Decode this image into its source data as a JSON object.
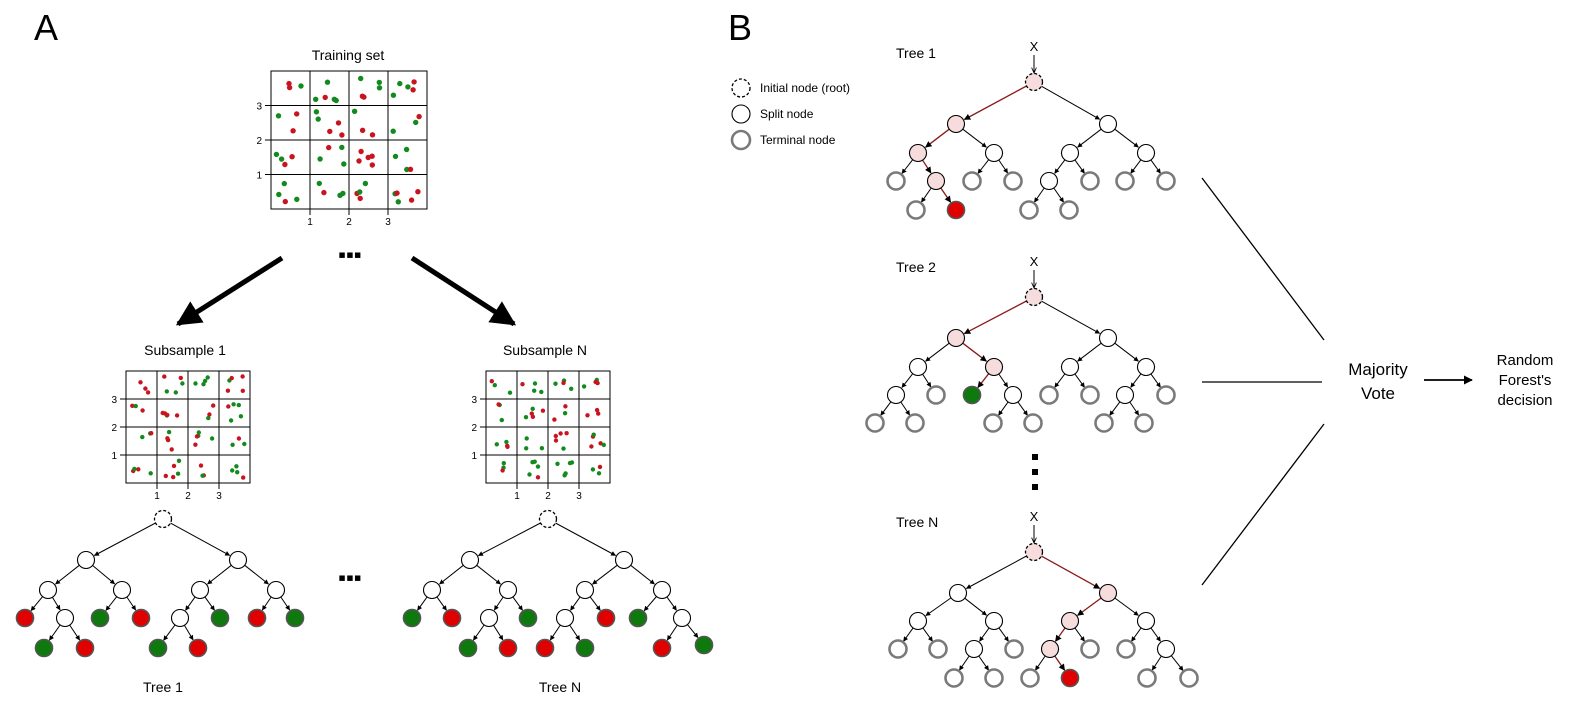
{
  "panels": {
    "a": "A",
    "b": "B"
  },
  "colors": {
    "red": "#e00000",
    "green": "#0e7a0e",
    "dotRed": "#c8141e",
    "dotGreen": "#138a1e",
    "pathNode": "#f6dcdc",
    "pathEdge": "#8b1a1a",
    "terminalStroke": "#7a7a7a"
  },
  "panel_a": {
    "training_title": "Training set",
    "subsample_1_title": "Subsample 1",
    "subsample_n_title": "Subsample  N",
    "tree_1_label": "Tree 1",
    "tree_n_label": "Tree N",
    "ellipsis": "▪▪▪",
    "axis_ticks": {
      "x": [
        "1",
        "2",
        "3"
      ],
      "y": [
        "1",
        "2",
        "3"
      ]
    }
  },
  "panel_b": {
    "legend": [
      {
        "shape": "root",
        "label": "Initial node (root)"
      },
      {
        "shape": "split",
        "label": "Split node"
      },
      {
        "shape": "terminal",
        "label": "Terminal node"
      }
    ],
    "trees": [
      {
        "label": "Tree 1",
        "input": "X",
        "leaf_color": "red"
      },
      {
        "label": "Tree 2",
        "input": "X",
        "leaf_color": "green"
      },
      {
        "label": "Tree N",
        "input": "X",
        "leaf_color": "red"
      }
    ],
    "majority_vote": [
      "Majority",
      "Vote"
    ],
    "decision": [
      "Random",
      "Forest's",
      "decision"
    ]
  }
}
